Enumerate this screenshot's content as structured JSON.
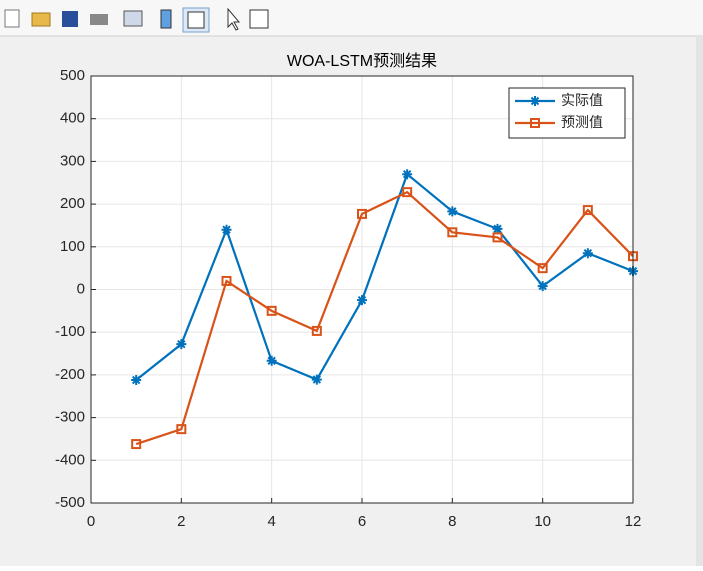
{
  "chart_data": {
    "type": "line",
    "title": "WOA-LSTM预测结果",
    "x": [
      1,
      2,
      3,
      4,
      5,
      6,
      7,
      8,
      9,
      10,
      11,
      12
    ],
    "series": [
      {
        "name": "实际值",
        "color": "#0072bd",
        "marker": "asterisk",
        "values": [
          -212,
          -128,
          140,
          -167,
          -211,
          -25,
          270,
          183,
          142,
          8,
          85,
          43
        ]
      },
      {
        "name": "预测值",
        "color": "#d95319",
        "marker": "square",
        "values": [
          -362,
          -327,
          20,
          -50,
          -97,
          177,
          228,
          134,
          122,
          50,
          186,
          78
        ]
      }
    ],
    "xlim": [
      0,
      12
    ],
    "xticks": [
      0,
      2,
      4,
      6,
      8,
      10,
      12
    ],
    "ylim": [
      -500,
      500
    ],
    "yticks": [
      -500,
      -400,
      -300,
      -200,
      -100,
      0,
      100,
      200,
      300,
      400,
      500
    ],
    "grid": true,
    "legend": "northeast"
  }
}
